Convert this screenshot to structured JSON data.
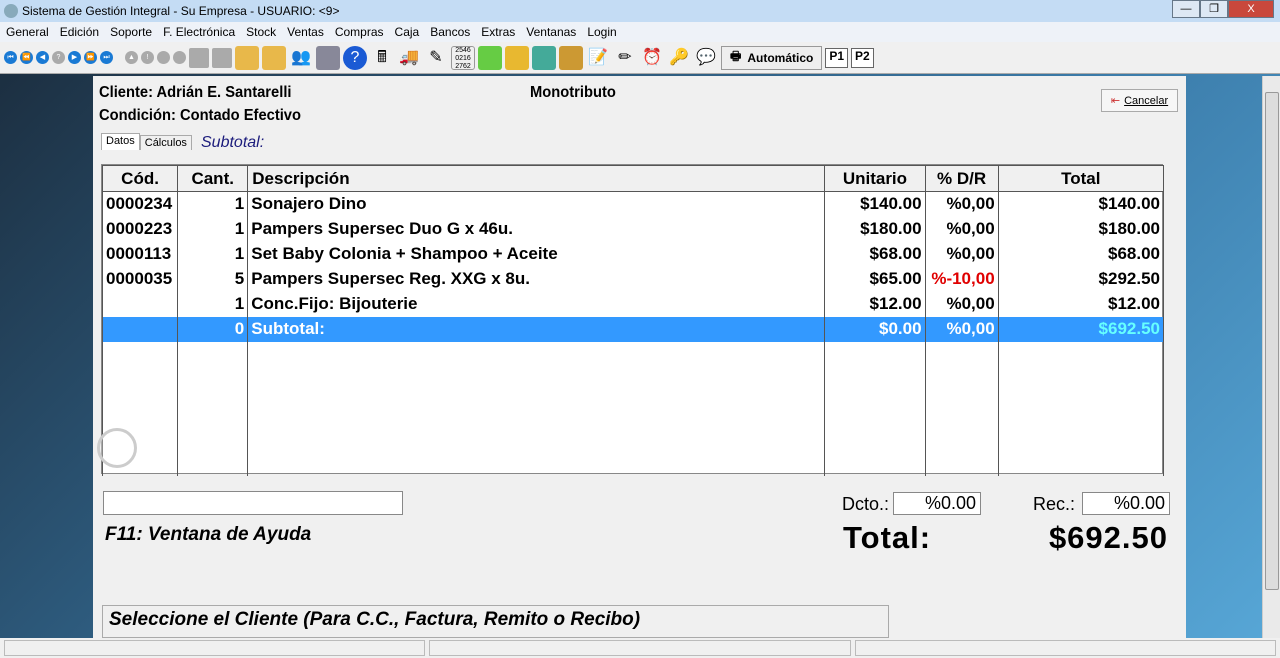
{
  "window": {
    "title": "Sistema de Gestión Integral - Su Empresa - USUARIO:  <9>",
    "minimize": "—",
    "restore": "❐",
    "close": "X"
  },
  "menu": [
    "General",
    "Edición",
    "Soporte",
    "F. Electrónica",
    "Stock",
    "Ventas",
    "Compras",
    "Caja",
    "Bancos",
    "Extras",
    "Ventanas",
    "Login"
  ],
  "toolbar": {
    "print_mode": "Automático",
    "p1": "P1",
    "p2": "P2"
  },
  "header": {
    "cliente": "Cliente: Adrián E. Santarelli",
    "condicion": "Condición: Contado Efectivo",
    "tipo": "Monotributo",
    "cancel": "Cancelar"
  },
  "tabs": [
    "Datos",
    "Cálculos"
  ],
  "subtotal_label": "Subtotal:",
  "table": {
    "columns": [
      "Cód.",
      "Cant.",
      "Descripción",
      "Unitario",
      "% D/R",
      "Total"
    ],
    "rows": [
      [
        "0000234",
        "1",
        "Sonajero Dino",
        "$140.00",
        "%0,00",
        "$140.00"
      ],
      [
        "0000223",
        "1",
        "Pampers Supersec Duo G x 46u.",
        "$180.00",
        "%0,00",
        "$180.00"
      ],
      [
        "0000113",
        "1",
        "Set Baby Colonia + Shampoo + Aceite",
        "$68.00",
        "%0,00",
        "$68.00"
      ],
      [
        "0000035",
        "5",
        "Pampers Supersec Reg. XXG x 8u.",
        "$65.00",
        "%-10,00",
        "$292.50"
      ],
      [
        "",
        "1",
        "Conc.Fijo: Bijouterie",
        "$12.00",
        "%0,00",
        "$12.00"
      ],
      [
        "",
        "0",
        "Subtotal:",
        "$0.00",
        "%0,00",
        "$692.50"
      ]
    ]
  },
  "footer": {
    "dcto_label": "Dcto.:",
    "dcto": "%0.00",
    "rec_label": "Rec.:",
    "rec": "%0.00",
    "help": "F11: Ventana de Ayuda",
    "total_label": "Total:",
    "total": "$692.50",
    "hint": "Seleccione el Cliente (Para C.C., Factura, Remito o Recibo)"
  },
  "colors": {
    "selected_row": "#3399ff",
    "negative": "#e00000",
    "subtotal_total": "#66ffff"
  }
}
